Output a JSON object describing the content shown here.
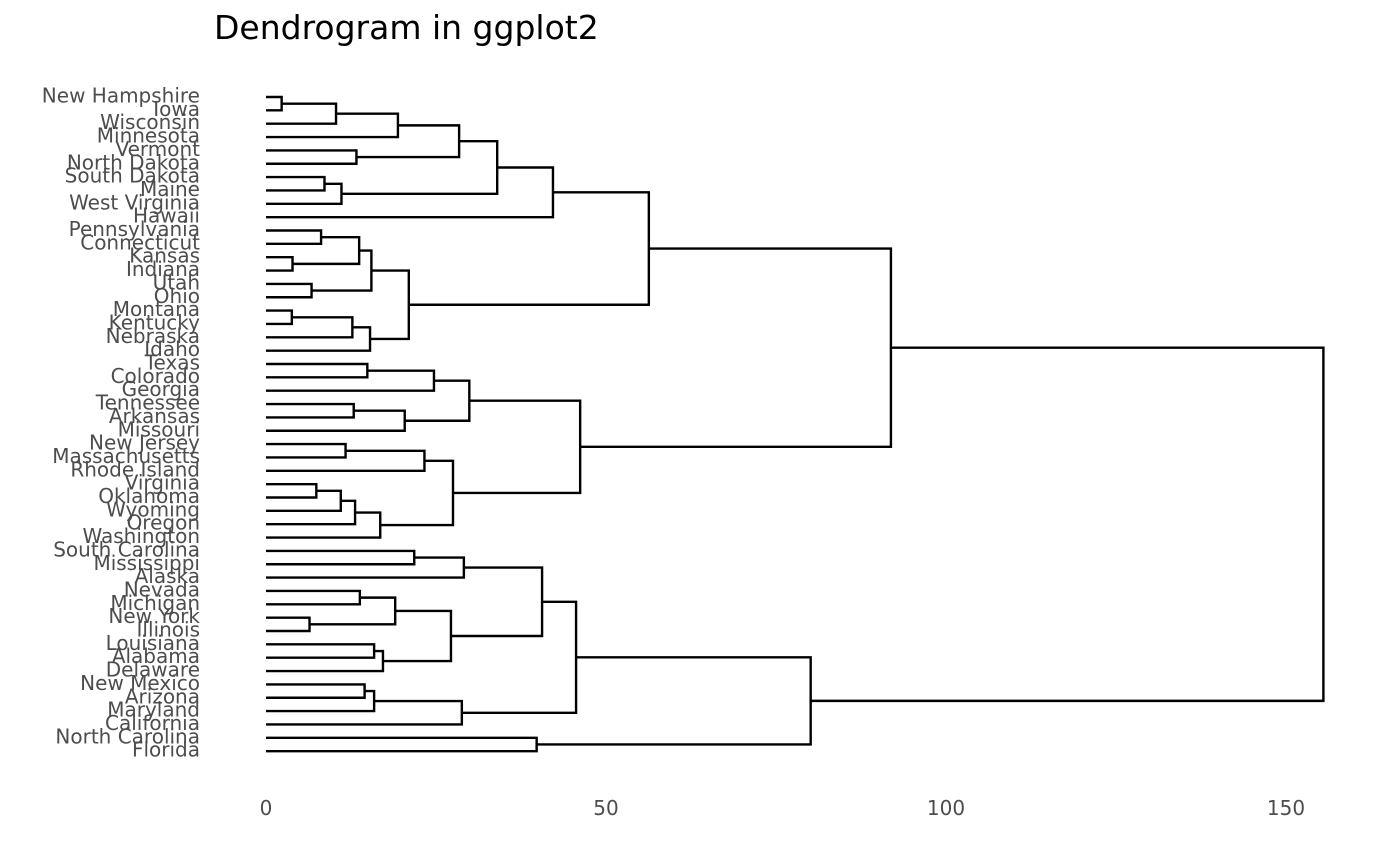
{
  "chart_data": {
    "type": "dendrogram",
    "title": "Dendrogram in ggplot2",
    "orientation": "horizontal",
    "xlim": [
      0,
      158
    ],
    "x_ticks": [
      0,
      50,
      100,
      150
    ],
    "x_tick_labels": [
      "0",
      "50",
      "100",
      "150"
    ],
    "grid": false,
    "leaves": [
      "New Hampshire",
      "Iowa",
      "Wisconsin",
      "Minnesota",
      "Vermont",
      "North Dakota",
      "South Dakota",
      "Maine",
      "West Virginia",
      "Hawaii",
      "Pennsylvania",
      "Connecticut",
      "Kansas",
      "Indiana",
      "Utah",
      "Ohio",
      "Montana",
      "Kentucky",
      "Nebraska",
      "Idaho",
      "Texas",
      "Colorado",
      "Georgia",
      "Tennessee",
      "Arkansas",
      "Missouri",
      "New Jersey",
      "Massachusetts",
      "Rhode Island",
      "Virginia",
      "Oklahoma",
      "Wyoming",
      "Oregon",
      "Washington",
      "South Carolina",
      "Mississippi",
      "Alaska",
      "Nevada",
      "Michigan",
      "New York",
      "Illinois",
      "Louisiana",
      "Alabama",
      "Delaware",
      "New Mexico",
      "Arizona",
      "Maryland",
      "California",
      "North Carolina",
      "Florida"
    ],
    "merges": [
      {
        "a": "L0",
        "b": "L1",
        "height": 2.3
      },
      {
        "a": "M0",
        "b": "L2",
        "height": 10.3
      },
      {
        "a": "M1",
        "b": "L3",
        "height": 19.4
      },
      {
        "a": "L4",
        "b": "L5",
        "height": 13.3
      },
      {
        "a": "M2",
        "b": "M3",
        "height": 28.4
      },
      {
        "a": "L6",
        "b": "L7",
        "height": 8.6
      },
      {
        "a": "M5",
        "b": "L8",
        "height": 11.1
      },
      {
        "a": "M4",
        "b": "M6",
        "height": 34.0
      },
      {
        "a": "M7",
        "b": "L9",
        "height": 42.2
      },
      {
        "a": "L10",
        "b": "L11",
        "height": 8.1
      },
      {
        "a": "L12",
        "b": "L13",
        "height": 3.9
      },
      {
        "a": "M9",
        "b": "M10",
        "height": 13.7
      },
      {
        "a": "L14",
        "b": "L15",
        "height": 6.7
      },
      {
        "a": "M11",
        "b": "M12",
        "height": 15.5
      },
      {
        "a": "L16",
        "b": "L17",
        "height": 3.8
      },
      {
        "a": "M14",
        "b": "L18",
        "height": 12.7
      },
      {
        "a": "M15",
        "b": "L19",
        "height": 15.3
      },
      {
        "a": "M13",
        "b": "M16",
        "height": 21.0
      },
      {
        "a": "M8",
        "b": "M17",
        "height": 56.3
      },
      {
        "a": "L20",
        "b": "L21",
        "height": 14.9
      },
      {
        "a": "M19",
        "b": "L22",
        "height": 24.7
      },
      {
        "a": "L23",
        "b": "L24",
        "height": 12.9
      },
      {
        "a": "M21",
        "b": "L25",
        "height": 20.4
      },
      {
        "a": "M20",
        "b": "M22",
        "height": 29.9
      },
      {
        "a": "L26",
        "b": "L27",
        "height": 11.7
      },
      {
        "a": "M24",
        "b": "L28",
        "height": 23.3
      },
      {
        "a": "L29",
        "b": "L30",
        "height": 7.4
      },
      {
        "a": "M26",
        "b": "L31",
        "height": 11.0
      },
      {
        "a": "M27",
        "b": "L32",
        "height": 13.1
      },
      {
        "a": "M28",
        "b": "L33",
        "height": 16.8
      },
      {
        "a": "M25",
        "b": "M29",
        "height": 27.5
      },
      {
        "a": "M23",
        "b": "M30",
        "height": 46.2
      },
      {
        "a": "M18",
        "b": "M31",
        "height": 91.9
      },
      {
        "a": "L34",
        "b": "L35",
        "height": 21.8
      },
      {
        "a": "M33",
        "b": "L36",
        "height": 29.1
      },
      {
        "a": "L37",
        "b": "L38",
        "height": 13.8
      },
      {
        "a": "L39",
        "b": "L40",
        "height": 6.4
      },
      {
        "a": "M35",
        "b": "M36",
        "height": 19.0
      },
      {
        "a": "L41",
        "b": "L42",
        "height": 15.9
      },
      {
        "a": "M38",
        "b": "L43",
        "height": 17.2
      },
      {
        "a": "M37",
        "b": "M39",
        "height": 27.2
      },
      {
        "a": "M34",
        "b": "M40",
        "height": 40.6
      },
      {
        "a": "L44",
        "b": "L45",
        "height": 14.5
      },
      {
        "a": "M42",
        "b": "L46",
        "height": 15.9
      },
      {
        "a": "M43",
        "b": "L47",
        "height": 28.8
      },
      {
        "a": "M41",
        "b": "M44",
        "height": 45.6
      },
      {
        "a": "L48",
        "b": "L49",
        "height": 39.8
      },
      {
        "a": "M45",
        "b": "M46",
        "height": 80.1
      },
      {
        "a": "M32",
        "b": "M47",
        "height": 155.5
      }
    ]
  }
}
